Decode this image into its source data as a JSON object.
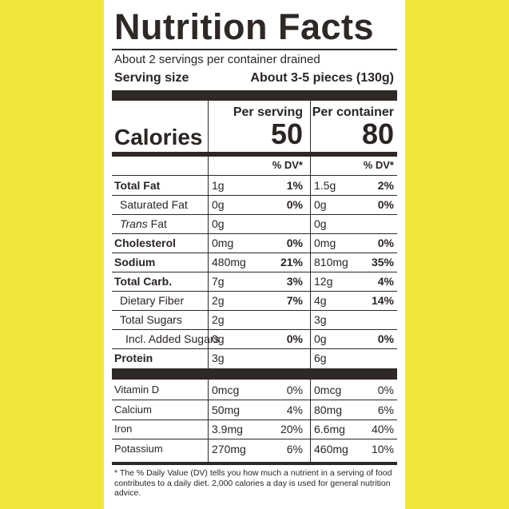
{
  "label": {
    "title": "Nutrition Facts",
    "servings_per_container": "About 2 servings per container drained",
    "serving_size_label": "Serving size",
    "serving_size_value": "About 3-5 pieces (130g)",
    "per_serving_header": "Per serving",
    "per_container_header": "Per container",
    "calories_label": "Calories",
    "calories_serving": "50",
    "calories_container": "80",
    "dv_header": "% DV*",
    "nutrients": [
      {
        "name": "Total Fat",
        "bold": true,
        "indent": 0,
        "serving_amount": "1g",
        "serving_dv": "1%",
        "container_amount": "1.5g",
        "container_dv": "2%"
      },
      {
        "name": "Saturated Fat",
        "bold": false,
        "indent": 1,
        "serving_amount": "0g",
        "serving_dv": "0%",
        "container_amount": "0g",
        "container_dv": "0%"
      },
      {
        "name_italic": "Trans",
        "name_rest": " Fat",
        "bold": false,
        "indent": 1,
        "serving_amount": "0g",
        "serving_dv": "",
        "container_amount": "0g",
        "container_dv": ""
      },
      {
        "name": "Cholesterol",
        "bold": true,
        "indent": 0,
        "serving_amount": "0mg",
        "serving_dv": "0%",
        "container_amount": "0mg",
        "container_dv": "0%"
      },
      {
        "name": "Sodium",
        "bold": true,
        "indent": 0,
        "serving_amount": "480mg",
        "serving_dv": "21%",
        "container_amount": "810mg",
        "container_dv": "35%"
      },
      {
        "name": "Total Carb.",
        "bold": true,
        "indent": 0,
        "serving_amount": "7g",
        "serving_dv": "3%",
        "container_amount": "12g",
        "container_dv": "4%"
      },
      {
        "name": "Dietary Fiber",
        "bold": false,
        "indent": 1,
        "serving_amount": "2g",
        "serving_dv": "7%",
        "container_amount": "4g",
        "container_dv": "14%"
      },
      {
        "name": "Total Sugars",
        "bold": false,
        "indent": 1,
        "serving_amount": "2g",
        "serving_dv": "",
        "container_amount": "3g",
        "container_dv": ""
      },
      {
        "name": "Incl. Added Sugars",
        "bold": false,
        "indent": 2,
        "serving_amount": "0g",
        "serving_dv": "0%",
        "container_amount": "0g",
        "container_dv": "0%"
      },
      {
        "name": "Protein",
        "bold": true,
        "indent": 0,
        "serving_amount": "3g",
        "serving_dv": "",
        "container_amount": "6g",
        "container_dv": ""
      }
    ],
    "vitamins": [
      {
        "name": "Vitamin D",
        "serving_amount": "0mcg",
        "serving_dv": "0%",
        "container_amount": "0mcg",
        "container_dv": "0%"
      },
      {
        "name": "Calcium",
        "serving_amount": "50mg",
        "serving_dv": "4%",
        "container_amount": "80mg",
        "container_dv": "6%"
      },
      {
        "name": "Iron",
        "serving_amount": "3.9mg",
        "serving_dv": "20%",
        "container_amount": "6.6mg",
        "container_dv": "40%"
      },
      {
        "name": "Potassium",
        "serving_amount": "270mg",
        "serving_dv": "6%",
        "container_amount": "460mg",
        "container_dv": "10%"
      }
    ],
    "footnote": "* The % Daily Value (DV) tells you how much a nutrient in a serving of food contributes to a daily diet. 2,000 calories a day is used for general nutrition advice."
  },
  "colors": {
    "ink": "#2e2826",
    "package_yellow": "#f3e63a",
    "background": "#ffffff"
  }
}
